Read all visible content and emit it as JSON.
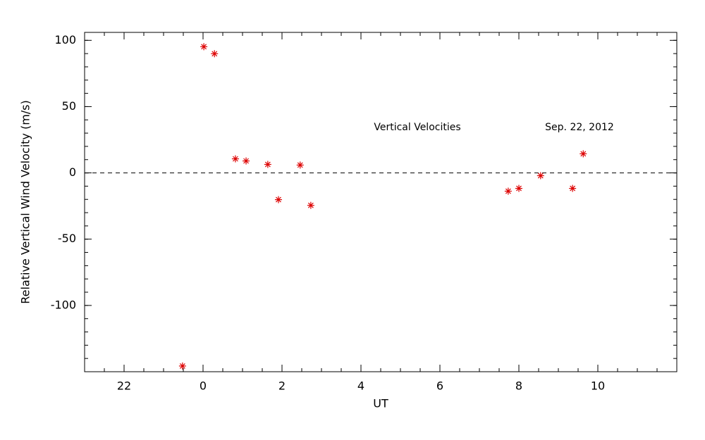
{
  "chart_data": {
    "type": "scatter",
    "xlabel": "UT",
    "ylabel": "Relative Vertical Wind Velocity (m/s)",
    "annotations": [
      "Vertical Velocities",
      "Sep. 22, 2012"
    ],
    "series": [
      {
        "name": "Vertical Velocities",
        "color": "#dd0000",
        "marker": "asterisk",
        "x": [
          -0.52,
          0.02,
          0.29,
          0.82,
          1.09,
          1.64,
          1.91,
          2.46,
          2.73,
          7.73,
          8.0,
          8.55,
          9.36,
          9.63
        ],
        "values": [
          -145.7,
          95.2,
          89.9,
          10.6,
          9.0,
          6.4,
          -20.2,
          5.9,
          -24.5,
          -13.8,
          -11.7,
          -2.1,
          -11.7,
          14.4
        ]
      }
    ],
    "xlim": [
      -3,
      12
    ],
    "xticks": [
      {
        "value": -2,
        "label": "22"
      },
      0,
      2,
      4,
      6,
      8,
      10
    ],
    "ylim": [
      -150,
      106
    ],
    "yticks": [
      -100,
      -50,
      0,
      50,
      100
    ],
    "x_minor_per_major": 4,
    "y_minor_per_major": 5,
    "hline": 0
  }
}
